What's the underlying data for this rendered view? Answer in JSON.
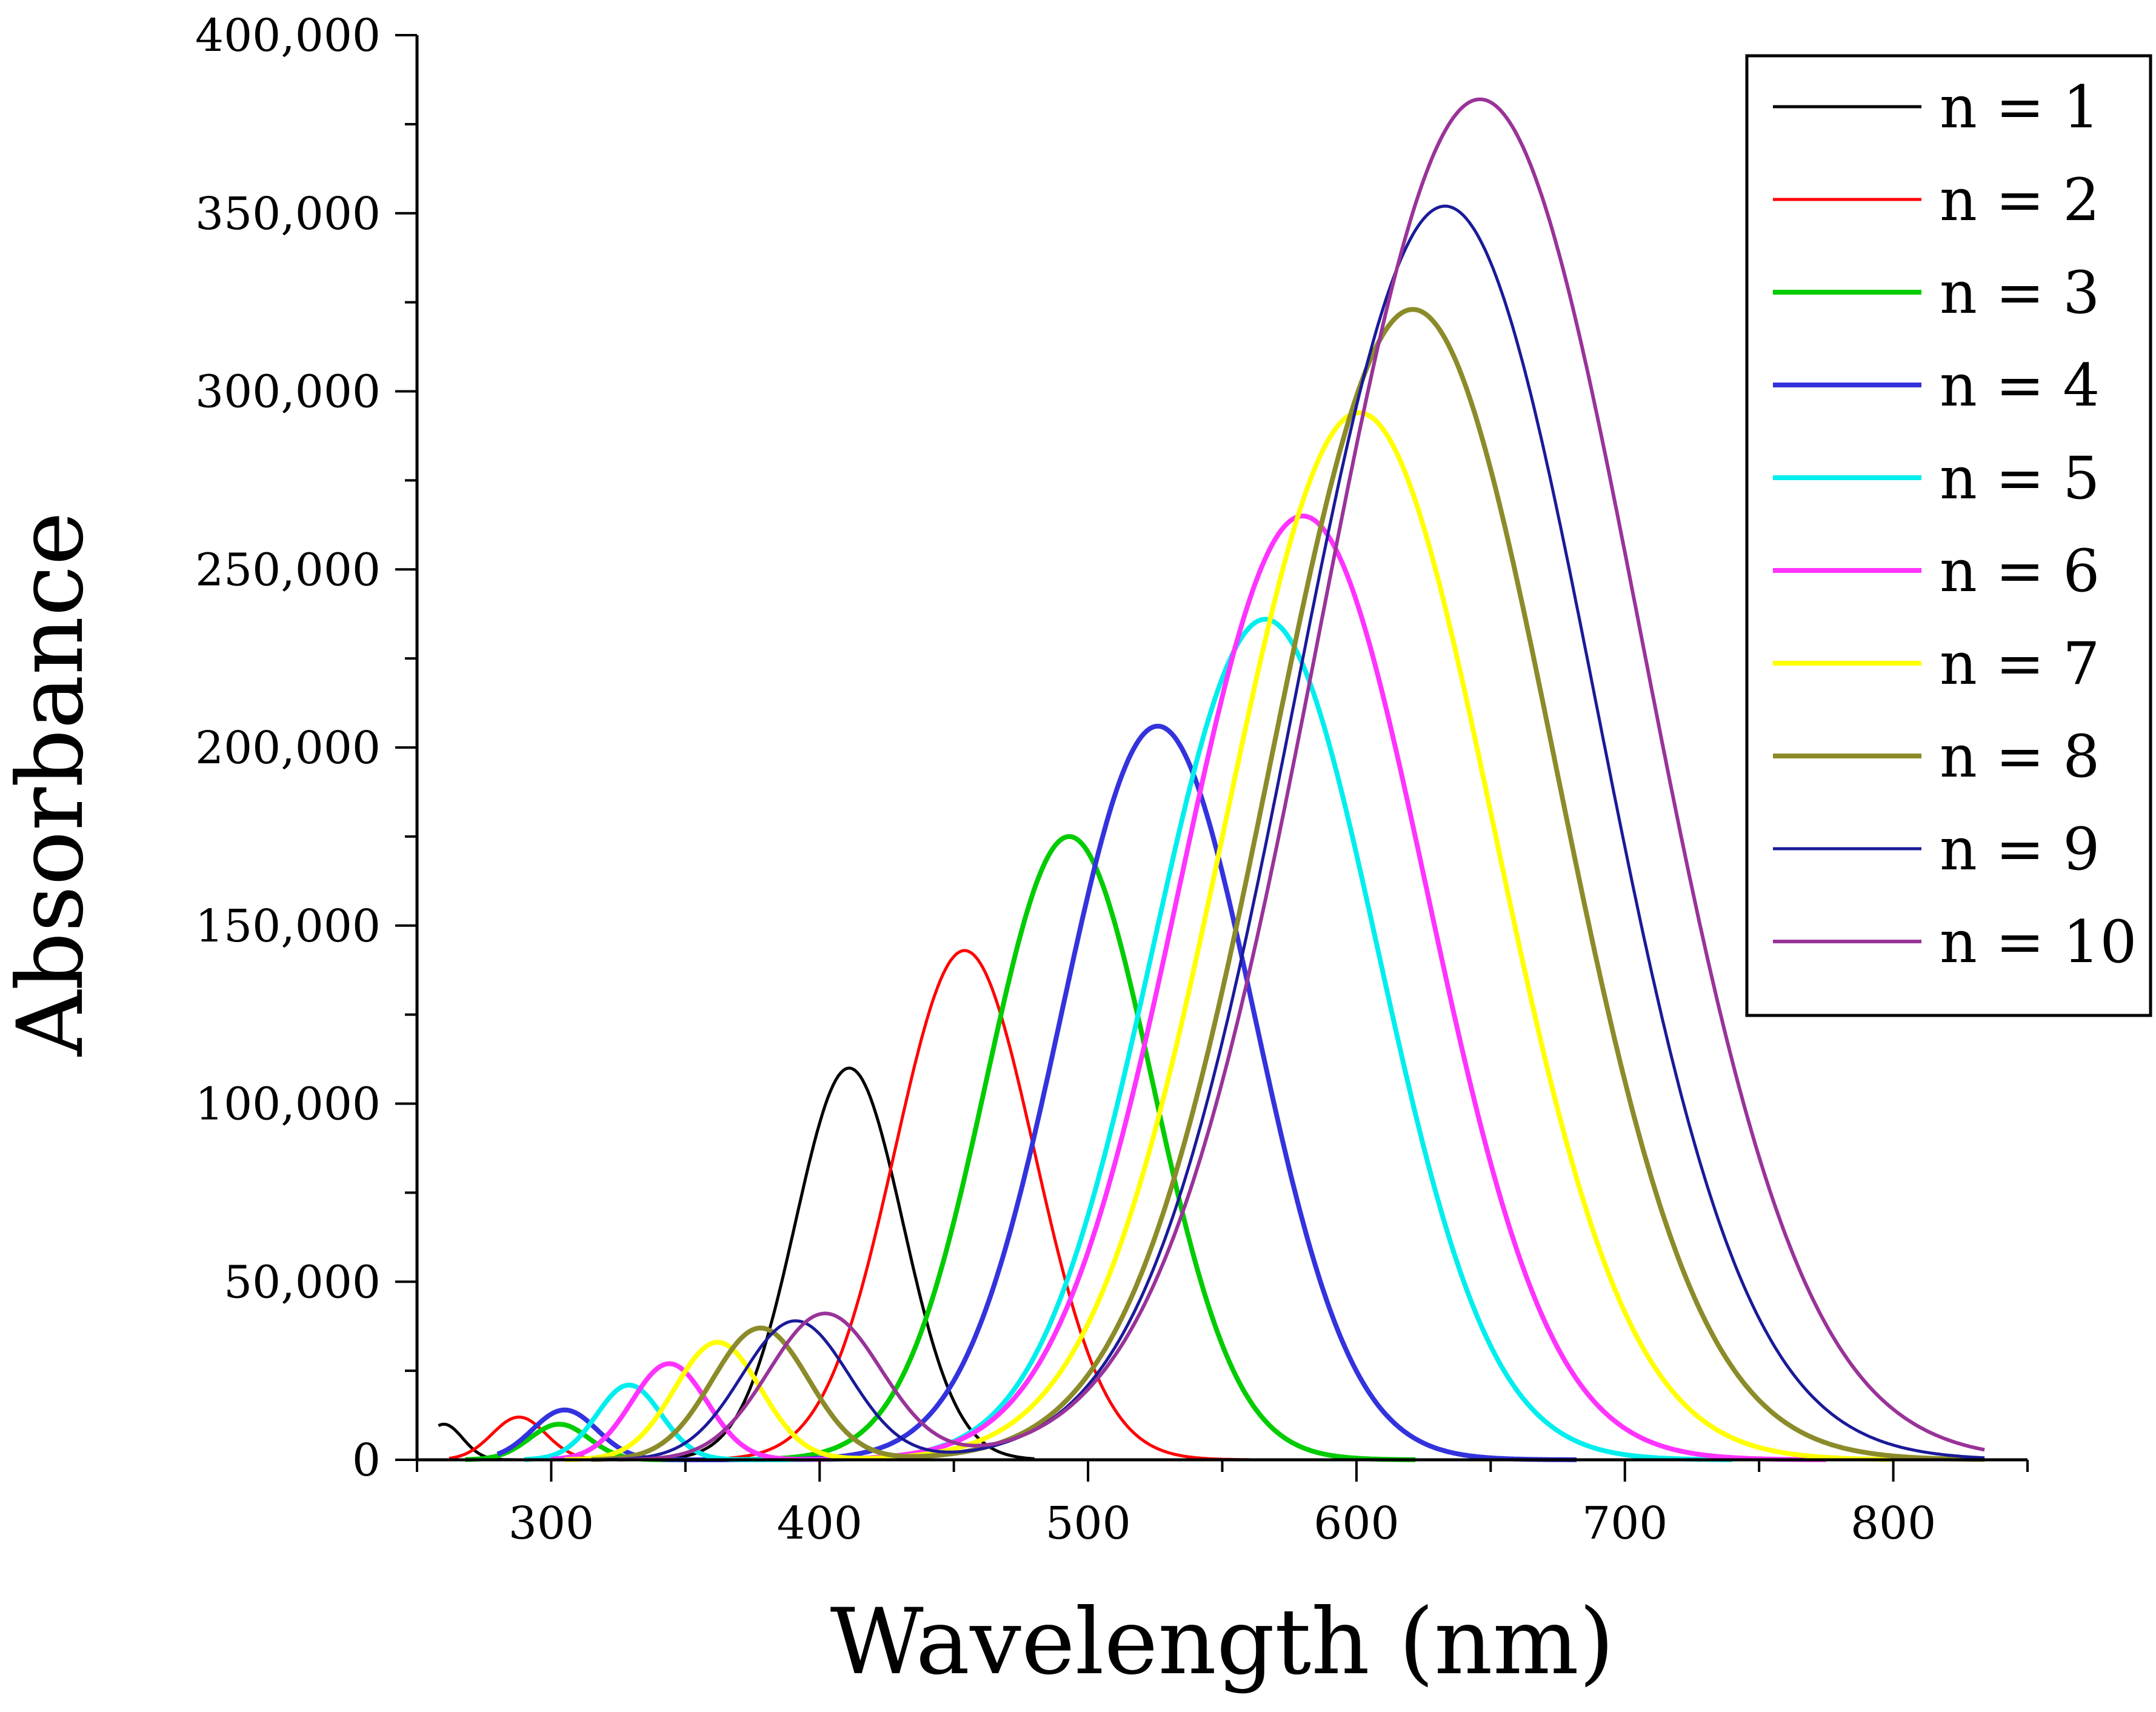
{
  "chart_data": {
    "type": "line",
    "title": "",
    "xlabel": "Wavelength (nm)",
    "ylabel": "Absorbance",
    "xlim": [
      250,
      850
    ],
    "ylim": [
      0,
      400000
    ],
    "xticks": [
      300,
      400,
      500,
      600,
      700,
      800
    ],
    "xtick_labels": [
      "300",
      "400",
      "500",
      "600",
      "700",
      "800"
    ],
    "yticks": [
      0,
      50000,
      100000,
      150000,
      200000,
      250000,
      300000,
      350000,
      400000
    ],
    "ytick_labels": [
      "0",
      "50,000",
      "100,000",
      "150,000",
      "200,000",
      "250,000",
      "300,000",
      "350,000",
      "400,000"
    ],
    "grid": false,
    "legend_position": "top-right",
    "series": [
      {
        "name": "n = 1",
        "color": "#000000",
        "stroke": 2.5,
        "range": [
          258,
          480
        ],
        "bands": [
          {
            "center": 260,
            "amp": 10000,
            "sigma": 7
          },
          {
            "center": 411,
            "amp": 110000,
            "sigma": 20
          }
        ]
      },
      {
        "name": "n = 2",
        "color": "#ff0000",
        "stroke": 2.5,
        "range": [
          262,
          560
        ],
        "bands": [
          {
            "center": 288,
            "amp": 12000,
            "sigma": 10
          },
          {
            "center": 454,
            "amp": 143000,
            "sigma": 26
          }
        ]
      },
      {
        "name": "n = 3",
        "color": "#00cc00",
        "stroke": 4,
        "range": [
          268,
          622
        ],
        "bands": [
          {
            "center": 303,
            "amp": 10000,
            "sigma": 11
          },
          {
            "center": 493,
            "amp": 175000,
            "sigma": 31
          }
        ]
      },
      {
        "name": "n = 4",
        "color": "#3333dd",
        "stroke": 4,
        "range": [
          280,
          682
        ],
        "bands": [
          {
            "center": 305,
            "amp": 14000,
            "sigma": 12
          },
          {
            "center": 526,
            "amp": 206000,
            "sigma": 36
          }
        ]
      },
      {
        "name": "n = 5",
        "color": "#00eeee",
        "stroke": 4,
        "range": [
          290,
          740
        ],
        "bands": [
          {
            "center": 329,
            "amp": 21000,
            "sigma": 12
          },
          {
            "center": 566,
            "amp": 236000,
            "sigma": 42
          }
        ]
      },
      {
        "name": "n = 6",
        "color": "#ff33ff",
        "stroke": 4,
        "range": [
          300,
          775
        ],
        "bands": [
          {
            "center": 344,
            "amp": 27000,
            "sigma": 14
          },
          {
            "center": 580,
            "amp": 265000,
            "sigma": 46
          }
        ]
      },
      {
        "name": "n = 7",
        "color": "#ffff00",
        "stroke": 4,
        "range": [
          305,
          800
        ],
        "bands": [
          {
            "center": 362,
            "amp": 33000,
            "sigma": 16
          },
          {
            "center": 601,
            "amp": 294000,
            "sigma": 50
          }
        ]
      },
      {
        "name": "n = 8",
        "color": "#8b8b2a",
        "stroke": 4,
        "range": [
          315,
          834
        ],
        "bands": [
          {
            "center": 378,
            "amp": 37000,
            "sigma": 18
          },
          {
            "center": 621,
            "amp": 323000,
            "sigma": 53
          }
        ]
      },
      {
        "name": "n = 9",
        "color": "#1a1a99",
        "stroke": 2.5,
        "range": [
          320,
          834
        ],
        "bands": [
          {
            "center": 391,
            "amp": 39000,
            "sigma": 20
          },
          {
            "center": 633,
            "amp": 352000,
            "sigma": 56
          }
        ]
      },
      {
        "name": "n = 10",
        "color": "#993399",
        "stroke": 3,
        "range": [
          325,
          834
        ],
        "bands": [
          {
            "center": 402,
            "amp": 41000,
            "sigma": 21
          },
          {
            "center": 646,
            "amp": 382000,
            "sigma": 60
          }
        ]
      }
    ]
  }
}
